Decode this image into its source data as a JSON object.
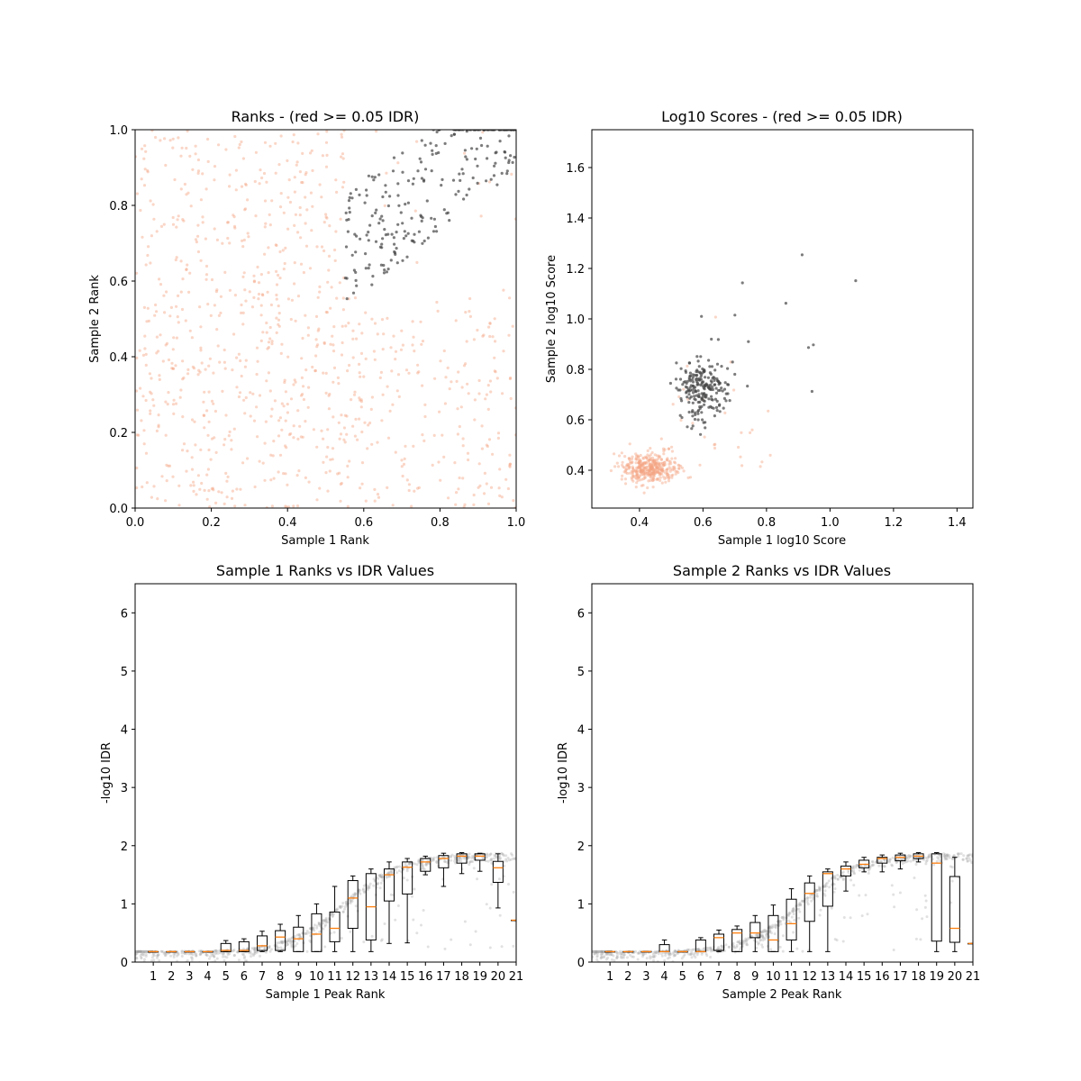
{
  "figure": {
    "background": "#ffffff",
    "colors": {
      "pass": "#444444",
      "fail": "#f4a582",
      "box": "#000000",
      "median": "#ff7f0e",
      "idr_points": "#aaaaaa"
    }
  },
  "chart_data": [
    {
      "type": "scatter",
      "title": "Ranks - (red >= 0.05 IDR)",
      "xlabel": "Sample 1 Rank",
      "ylabel": "Sample 2 Rank",
      "xlim": [
        0.0,
        1.0
      ],
      "ylim": [
        0.0,
        1.0
      ],
      "xticks": [
        "0.0",
        "0.2",
        "0.4",
        "0.6",
        "0.8",
        "1.0"
      ],
      "yticks": [
        "0.0",
        "0.2",
        "0.4",
        "0.6",
        "0.8",
        "1.0"
      ],
      "grid": false,
      "series": [
        {
          "color_key": "fail",
          "n": 900,
          "shape": "uniform_lower_left",
          "x_range": [
            0.0,
            1.0
          ],
          "y_range": [
            0.0,
            1.0
          ]
        },
        {
          "color_key": "pass",
          "n": 250,
          "shape": "upper_right_band",
          "x_range": [
            0.55,
            1.0
          ],
          "y_range": [
            0.53,
            1.0
          ]
        }
      ]
    },
    {
      "type": "scatter",
      "title": "Log10 Scores - (red >= 0.05 IDR)",
      "xlabel": "Sample 1 log10 Score",
      "ylabel": "Sample 2 log10 Score",
      "xlim": [
        0.25,
        1.45
      ],
      "ylim": [
        0.25,
        1.75
      ],
      "xticks": [
        "0.4",
        "0.6",
        "0.8",
        "1.0",
        "1.2",
        "1.4"
      ],
      "yticks": [
        "0.4",
        "0.6",
        "0.8",
        "1.0",
        "1.2",
        "1.4",
        "1.6"
      ],
      "grid": false,
      "series": [
        {
          "color_key": "fail",
          "n": 420,
          "center": [
            0.43,
            0.41
          ],
          "spread": [
            0.045,
            0.03
          ]
        },
        {
          "color_key": "pass",
          "n": 230,
          "center": [
            0.6,
            0.72
          ],
          "spread": [
            0.04,
            0.06
          ]
        }
      ]
    },
    {
      "type": "box",
      "title": "Sample 1 Ranks vs IDR Values",
      "xlabel": "Sample 1 Peak Rank",
      "ylabel": "-log10 IDR",
      "xlim": [
        0,
        21
      ],
      "ylim": [
        0,
        6.5
      ],
      "xticks": [
        "1",
        "2",
        "3",
        "4",
        "5",
        "6",
        "7",
        "8",
        "9",
        "10",
        "11",
        "12",
        "13",
        "14",
        "15",
        "16",
        "17",
        "18",
        "19",
        "20",
        "21"
      ],
      "yticks": [
        "0",
        "1",
        "2",
        "3",
        "4",
        "5",
        "6"
      ],
      "boxes": [
        {
          "pos": 1,
          "wlo": 0.18,
          "q1": 0.18,
          "med": 0.18,
          "q3": 0.18,
          "whi": 0.18
        },
        {
          "pos": 2,
          "wlo": 0.18,
          "q1": 0.18,
          "med": 0.18,
          "q3": 0.18,
          "whi": 0.18
        },
        {
          "pos": 3,
          "wlo": 0.18,
          "q1": 0.18,
          "med": 0.18,
          "q3": 0.18,
          "whi": 0.18
        },
        {
          "pos": 4,
          "wlo": 0.18,
          "q1": 0.18,
          "med": 0.18,
          "q3": 0.18,
          "whi": 0.18
        },
        {
          "pos": 5,
          "wlo": 0.18,
          "q1": 0.18,
          "med": 0.2,
          "q3": 0.32,
          "whi": 0.37
        },
        {
          "pos": 6,
          "wlo": 0.18,
          "q1": 0.18,
          "med": 0.2,
          "q3": 0.35,
          "whi": 0.4
        },
        {
          "pos": 7,
          "wlo": 0.18,
          "q1": 0.2,
          "med": 0.28,
          "q3": 0.45,
          "whi": 0.53
        },
        {
          "pos": 8,
          "wlo": 0.18,
          "q1": 0.2,
          "med": 0.43,
          "q3": 0.54,
          "whi": 0.65
        },
        {
          "pos": 9,
          "wlo": 0.18,
          "q1": 0.18,
          "med": 0.4,
          "q3": 0.6,
          "whi": 0.8
        },
        {
          "pos": 10,
          "wlo": 0.18,
          "q1": 0.18,
          "med": 0.48,
          "q3": 0.83,
          "whi": 1.0
        },
        {
          "pos": 11,
          "wlo": 0.18,
          "q1": 0.35,
          "med": 0.58,
          "q3": 0.86,
          "whi": 1.3
        },
        {
          "pos": 12,
          "wlo": 0.18,
          "q1": 0.58,
          "med": 1.1,
          "q3": 1.4,
          "whi": 1.48
        },
        {
          "pos": 13,
          "wlo": 0.18,
          "q1": 0.38,
          "med": 0.95,
          "q3": 1.52,
          "whi": 1.6
        },
        {
          "pos": 14,
          "wlo": 0.32,
          "q1": 1.05,
          "med": 1.5,
          "q3": 1.6,
          "whi": 1.72
        },
        {
          "pos": 15,
          "wlo": 0.33,
          "q1": 1.17,
          "med": 1.63,
          "q3": 1.72,
          "whi": 1.78
        },
        {
          "pos": 16,
          "wlo": 1.5,
          "q1": 1.56,
          "med": 1.72,
          "q3": 1.78,
          "whi": 1.82
        },
        {
          "pos": 17,
          "wlo": 1.3,
          "q1": 1.62,
          "med": 1.78,
          "q3": 1.83,
          "whi": 1.87
        },
        {
          "pos": 18,
          "wlo": 1.52,
          "q1": 1.7,
          "med": 1.82,
          "q3": 1.86,
          "whi": 1.88
        },
        {
          "pos": 19,
          "wlo": 1.56,
          "q1": 1.75,
          "med": 1.82,
          "q3": 1.86,
          "whi": 1.87
        },
        {
          "pos": 20,
          "wlo": 0.93,
          "q1": 1.37,
          "med": 1.62,
          "q3": 1.73,
          "whi": 1.86
        },
        {
          "pos": 21,
          "wlo": 0.72,
          "q1": 0.72,
          "med": 0.72,
          "q3": 0.72,
          "whi": 0.72
        }
      ]
    },
    {
      "type": "box",
      "title": "Sample 2 Ranks vs IDR Values",
      "xlabel": "Sample 2 Peak Rank",
      "ylabel": "-log10 IDR",
      "xlim": [
        0,
        21
      ],
      "ylim": [
        0,
        6.5
      ],
      "xticks": [
        "1",
        "2",
        "3",
        "4",
        "5",
        "6",
        "7",
        "8",
        "9",
        "10",
        "11",
        "12",
        "13",
        "14",
        "15",
        "16",
        "17",
        "18",
        "19",
        "20",
        "21"
      ],
      "yticks": [
        "0",
        "1",
        "2",
        "3",
        "4",
        "5",
        "6"
      ],
      "boxes": [
        {
          "pos": 1,
          "wlo": 0.18,
          "q1": 0.18,
          "med": 0.18,
          "q3": 0.18,
          "whi": 0.18
        },
        {
          "pos": 2,
          "wlo": 0.18,
          "q1": 0.18,
          "med": 0.18,
          "q3": 0.18,
          "whi": 0.18
        },
        {
          "pos": 3,
          "wlo": 0.18,
          "q1": 0.18,
          "med": 0.18,
          "q3": 0.18,
          "whi": 0.18
        },
        {
          "pos": 4,
          "wlo": 0.18,
          "q1": 0.18,
          "med": 0.18,
          "q3": 0.3,
          "whi": 0.38
        },
        {
          "pos": 5,
          "wlo": 0.18,
          "q1": 0.18,
          "med": 0.18,
          "q3": 0.18,
          "whi": 0.18
        },
        {
          "pos": 6,
          "wlo": 0.18,
          "q1": 0.18,
          "med": 0.18,
          "q3": 0.38,
          "whi": 0.42
        },
        {
          "pos": 7,
          "wlo": 0.18,
          "q1": 0.2,
          "med": 0.42,
          "q3": 0.48,
          "whi": 0.55
        },
        {
          "pos": 8,
          "wlo": 0.18,
          "q1": 0.18,
          "med": 0.5,
          "q3": 0.56,
          "whi": 0.62
        },
        {
          "pos": 9,
          "wlo": 0.18,
          "q1": 0.42,
          "med": 0.5,
          "q3": 0.68,
          "whi": 0.8
        },
        {
          "pos": 10,
          "wlo": 0.18,
          "q1": 0.18,
          "med": 0.38,
          "q3": 0.8,
          "whi": 0.98
        },
        {
          "pos": 11,
          "wlo": 0.18,
          "q1": 0.38,
          "med": 0.66,
          "q3": 1.08,
          "whi": 1.26
        },
        {
          "pos": 12,
          "wlo": 0.18,
          "q1": 0.7,
          "med": 1.18,
          "q3": 1.36,
          "whi": 1.48
        },
        {
          "pos": 13,
          "wlo": 0.18,
          "q1": 0.96,
          "med": 1.52,
          "q3": 1.55,
          "whi": 1.6
        },
        {
          "pos": 14,
          "wlo": 1.22,
          "q1": 1.48,
          "med": 1.6,
          "q3": 1.65,
          "whi": 1.72
        },
        {
          "pos": 15,
          "wlo": 1.55,
          "q1": 1.62,
          "med": 1.68,
          "q3": 1.75,
          "whi": 1.8
        },
        {
          "pos": 16,
          "wlo": 1.55,
          "q1": 1.7,
          "med": 1.78,
          "q3": 1.8,
          "whi": 1.84
        },
        {
          "pos": 17,
          "wlo": 1.6,
          "q1": 1.74,
          "med": 1.8,
          "q3": 1.84,
          "whi": 1.87
        },
        {
          "pos": 18,
          "wlo": 1.72,
          "q1": 1.78,
          "med": 1.82,
          "q3": 1.86,
          "whi": 1.88
        },
        {
          "pos": 19,
          "wlo": 0.18,
          "q1": 0.36,
          "med": 1.7,
          "q3": 1.86,
          "whi": 1.88
        },
        {
          "pos": 20,
          "wlo": 0.18,
          "q1": 0.34,
          "med": 0.58,
          "q3": 1.47,
          "whi": 1.8
        },
        {
          "pos": 21,
          "wlo": 0.32,
          "q1": 0.32,
          "med": 0.32,
          "q3": 0.32,
          "whi": 0.32
        }
      ]
    }
  ]
}
